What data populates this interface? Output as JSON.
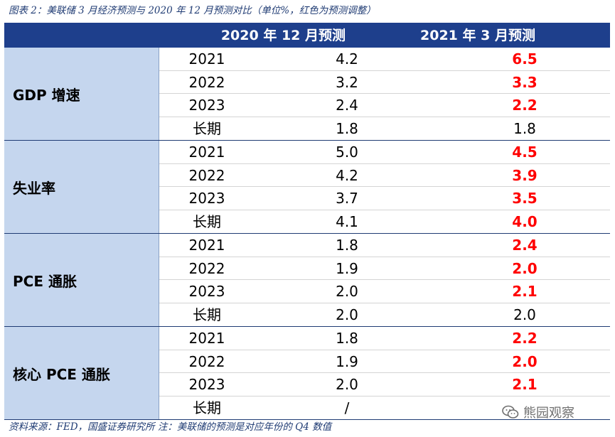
{
  "caption": "图表 2：美联储 3 月经济预测与 2020 年 12 月预测对比（单位%，红色为预测调整）",
  "header": {
    "col_2020": "2020 年 12 月预测",
    "col_2021": "2021 年 3 月预测"
  },
  "groups": [
    {
      "label": "GDP 增速",
      "rows": [
        {
          "year": "2021",
          "v2020": "4.2",
          "v2021": "6.5",
          "changed": true
        },
        {
          "year": "2022",
          "v2020": "3.2",
          "v2021": "3.3",
          "changed": true
        },
        {
          "year": "2023",
          "v2020": "2.4",
          "v2021": "2.2",
          "changed": true
        },
        {
          "year": "长期",
          "v2020": "1.8",
          "v2021": "1.8",
          "changed": false
        }
      ]
    },
    {
      "label": "失业率",
      "rows": [
        {
          "year": "2021",
          "v2020": "5.0",
          "v2021": "4.5",
          "changed": true
        },
        {
          "year": "2022",
          "v2020": "4.2",
          "v2021": "3.9",
          "changed": true
        },
        {
          "year": "2023",
          "v2020": "3.7",
          "v2021": "3.5",
          "changed": true
        },
        {
          "year": "长期",
          "v2020": "4.1",
          "v2021": "4.0",
          "changed": true
        }
      ]
    },
    {
      "label": "PCE 通胀",
      "rows": [
        {
          "year": "2021",
          "v2020": "1.8",
          "v2021": "2.4",
          "changed": true
        },
        {
          "year": "2022",
          "v2020": "1.9",
          "v2021": "2.0",
          "changed": true
        },
        {
          "year": "2023",
          "v2020": "2.0",
          "v2021": "2.1",
          "changed": true
        },
        {
          "year": "长期",
          "v2020": "2.0",
          "v2021": "2.0",
          "changed": false
        }
      ]
    },
    {
      "label": "核心 PCE 通胀",
      "rows": [
        {
          "year": "2021",
          "v2020": "1.8",
          "v2021": "2.2",
          "changed": true
        },
        {
          "year": "2022",
          "v2020": "1.9",
          "v2021": "2.0",
          "changed": true
        },
        {
          "year": "2023",
          "v2020": "2.0",
          "v2021": "2.1",
          "changed": true
        },
        {
          "year": "长期",
          "v2020": "/",
          "v2021": "",
          "changed": false
        }
      ]
    }
  ],
  "source": "资料来源：FED，国盛证券研究所      注：美联储的预测是对应年份的 Q4 数值",
  "watermark": {
    "icon": "wechat-icon",
    "text": "熊园观察"
  },
  "colors": {
    "header_bg": "#1e3f8c",
    "label_bg": "#c5d6ee",
    "changed": "#ff0000",
    "caption": "#1f3b73"
  }
}
